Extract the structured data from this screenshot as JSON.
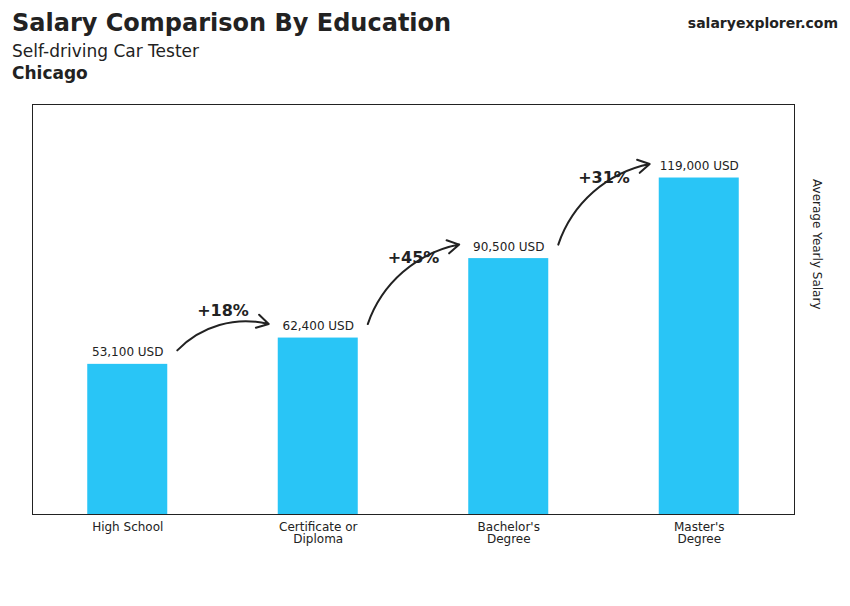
{
  "chart_data": {
    "type": "bar",
    "title": "Salary Comparison By Education",
    "subtitle": "Self-driving Car Tester",
    "ylabel": "Average Yearly Salary",
    "categories": [
      "High School",
      "Certificate or\nDiploma",
      "Bachelor's\nDegree",
      "Master's\nDegree"
    ],
    "values": [
      53100,
      62400,
      90500,
      119000
    ],
    "value_labels": [
      "53,100 USD",
      "62,400 USD",
      "90,500 USD",
      "119,000 USD"
    ],
    "data_labels": true,
    "color": "#29c5f6",
    "ylim": [
      0,
      145000
    ],
    "yticks": [],
    "tick_labels": "x",
    "grid": false,
    "annotations": [
      {
        "text": "+18%",
        "from": "High School",
        "to": "Certificate or\nDiploma"
      },
      {
        "text": "+45%",
        "from": "Certificate or\nDiploma",
        "to": "Bachelor's\nDegree"
      },
      {
        "text": "+31%",
        "from": "Bachelor's\nDegree",
        "to": "Master's\nDegree"
      },
      {
        "text": "Chicago"
      },
      {
        "text": "salaryexplorer.com"
      }
    ]
  }
}
